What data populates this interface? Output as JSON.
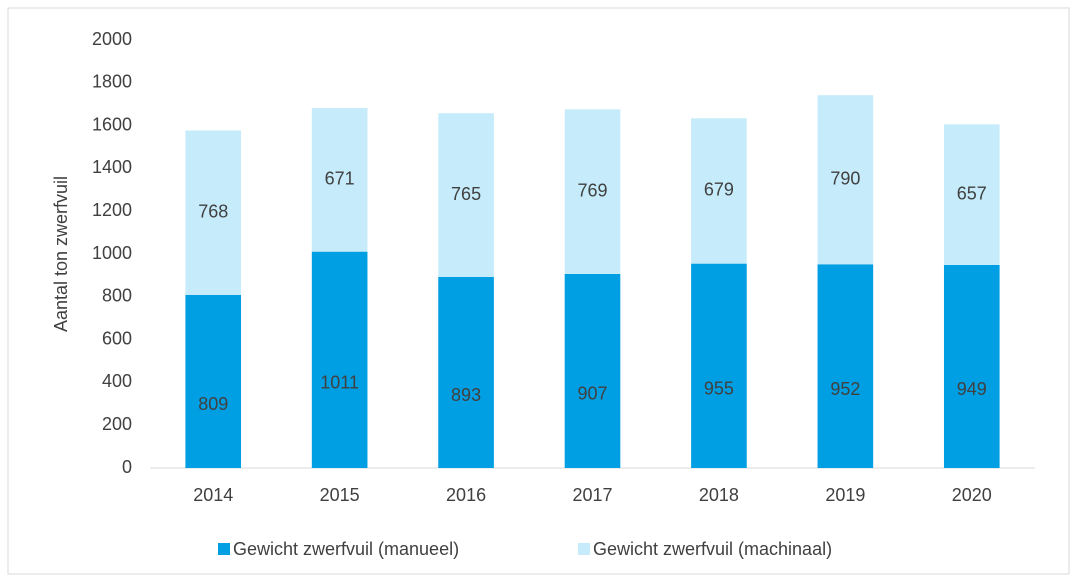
{
  "chart_data": {
    "type": "stacked_bar",
    "y_label": "Aantal ton zwerfvuil",
    "categories": [
      "2014",
      "2015",
      "2016",
      "2017",
      "2018",
      "2019",
      "2020"
    ],
    "series": [
      {
        "name": "Gewicht zwerfvuil (manueel)",
        "color": "#009fe3",
        "values": [
          809,
          1011,
          893,
          907,
          955,
          952,
          949
        ]
      },
      {
        "name": "Gewicht zwerfvuil (machinaal)",
        "color": "#c6ecfb",
        "values": [
          768,
          671,
          765,
          769,
          679,
          790,
          657
        ]
      }
    ],
    "ylim": [
      0,
      2000
    ],
    "yticks": [
      0,
      200,
      400,
      600,
      800,
      1000,
      1200,
      1400,
      1600,
      1800,
      2000
    ],
    "legend": "bottom"
  }
}
